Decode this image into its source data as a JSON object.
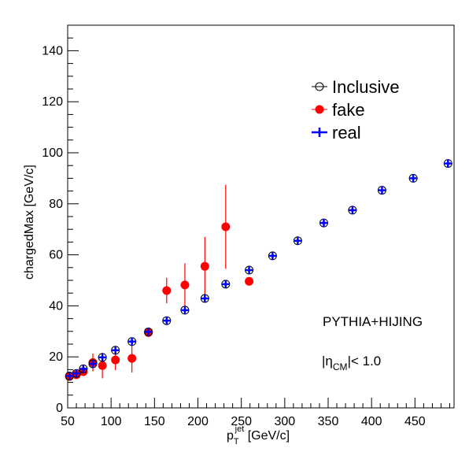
{
  "chart_data": {
    "type": "scatter",
    "xlabel": "p",
    "xlabel_sup": "jet",
    "xlabel_sub": "T",
    "xlabel_unit": " [GeV/c]",
    "ylabel": "chargedMax [GeV/c]",
    "xlim": [
      50,
      495
    ],
    "ylim": [
      0,
      150
    ],
    "xticks": [
      50,
      100,
      150,
      200,
      250,
      300,
      350,
      400,
      450
    ],
    "yticks": [
      0,
      20,
      40,
      60,
      80,
      100,
      120,
      140
    ],
    "legend_position": "top-right",
    "annotations": {
      "generator": "PYTHIA+HIJING",
      "eta_prefix": "|",
      "eta_symbol": "η",
      "eta_sub": "CM",
      "eta_suffix": "|< 1.0"
    },
    "series": [
      {
        "name": "Inclusive",
        "color": "#000000",
        "marker": "open-circle",
        "x": [
          52,
          60,
          68,
          79,
          90,
          105,
          124,
          143,
          164,
          185,
          208,
          232,
          259,
          286,
          315,
          345,
          378,
          412,
          448,
          488
        ],
        "y": [
          12.5,
          13.5,
          15.3,
          17.3,
          19.8,
          22.6,
          26.0,
          29.8,
          34.2,
          38.3,
          42.9,
          48.5,
          54.0,
          59.6,
          65.5,
          72.5,
          77.5,
          85.3,
          90.0,
          95.8
        ]
      },
      {
        "name": "fake",
        "color": "#ff0000",
        "marker": "filled-circle",
        "x": [
          52,
          60,
          68,
          79,
          90,
          105,
          124,
          143,
          164,
          185,
          208,
          232,
          259
        ],
        "y": [
          12.3,
          13.0,
          14.2,
          17.8,
          16.6,
          18.8,
          19.4,
          29.5,
          46.0,
          48.2,
          55.5,
          71.0,
          49.6
        ],
        "yerr": [
          0.5,
          1.0,
          1.5,
          3.5,
          5.0,
          4.0,
          5.5,
          1.5,
          5.0,
          8.5,
          11.5,
          16.5,
          0
        ]
      },
      {
        "name": "real",
        "color": "#0000ff",
        "marker": "cross",
        "x": [
          52,
          60,
          68,
          79,
          90,
          105,
          124,
          143,
          164,
          185,
          208,
          232,
          259,
          286,
          315,
          345,
          378,
          412,
          448,
          488
        ],
        "y": [
          12.5,
          13.5,
          15.3,
          17.3,
          19.8,
          22.6,
          26.0,
          29.8,
          34.2,
          38.3,
          42.9,
          48.5,
          54.0,
          59.6,
          65.5,
          72.5,
          77.5,
          85.3,
          90.0,
          95.8
        ]
      }
    ]
  }
}
